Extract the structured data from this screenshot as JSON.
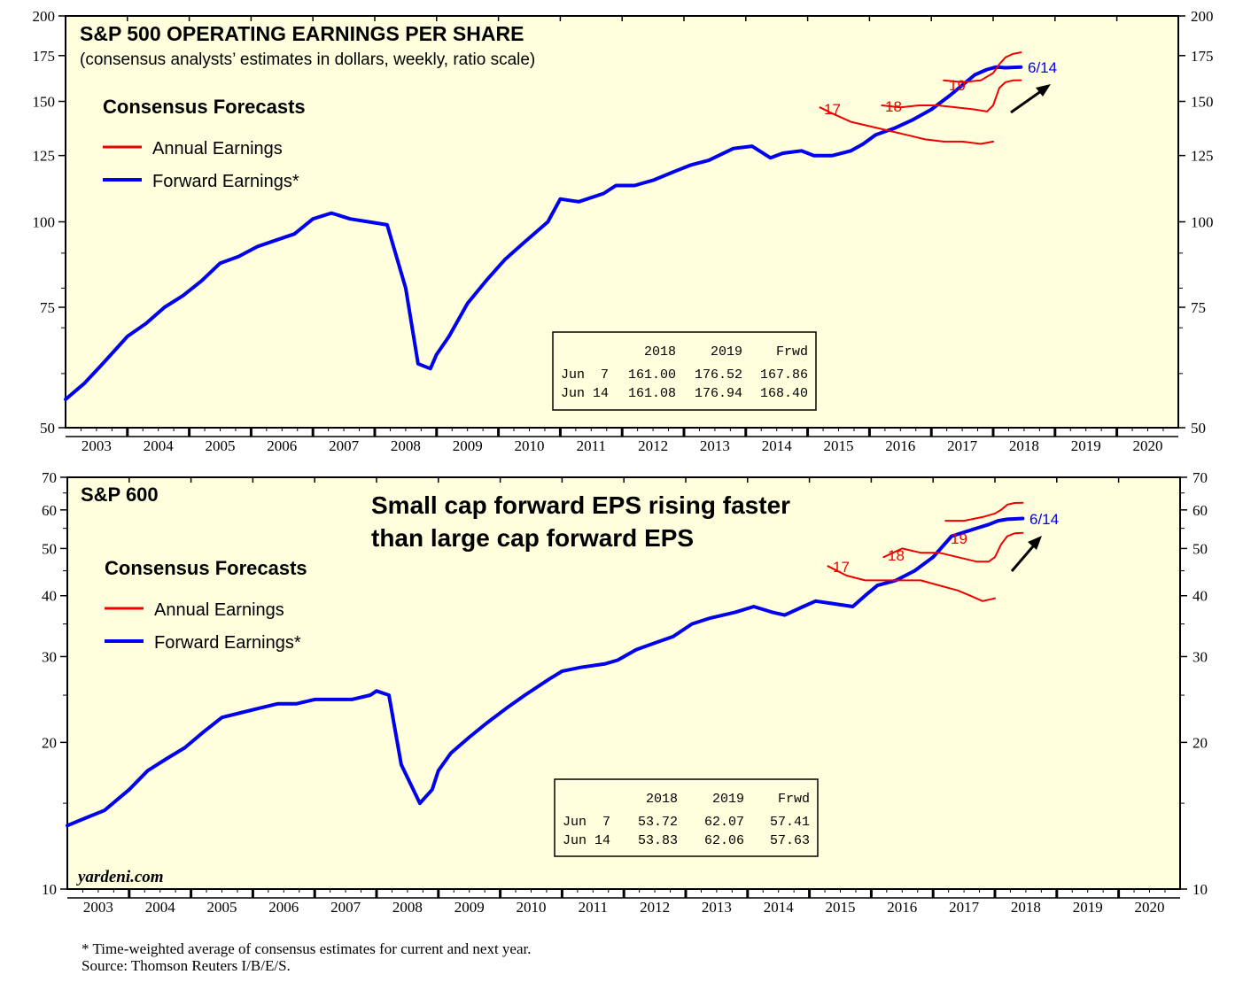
{
  "colors": {
    "background": "#ffffdd",
    "forward": "#0000ee",
    "annual": "#ee0000",
    "axis": "#000000"
  },
  "footnote": {
    "line1": "* Time-weighted average of consensus estimates for current and next year.",
    "line2": "Source: Thomson Reuters I/B/E/S."
  },
  "chart_data": [
    {
      "type": "line",
      "title": "S&P 500 OPERATING EARNINGS PER SHARE",
      "subtitle": "(consensus analysts’ estimates in dollars, weekly, ratio scale)",
      "legend_heading": "Consensus Forecasts",
      "legend": [
        "Annual Earnings",
        "Forward Earnings*"
      ],
      "scale": "log",
      "ylim": [
        50,
        200
      ],
      "xlim": [
        2003,
        2021
      ],
      "y_ticks": [
        50,
        75,
        100,
        125,
        150,
        175,
        200
      ],
      "x_ticks": [
        "2003",
        "2004",
        "2005",
        "2006",
        "2007",
        "2008",
        "2009",
        "2010",
        "2011",
        "2012",
        "2013",
        "2014",
        "2015",
        "2016",
        "2017",
        "2018",
        "2019",
        "2020"
      ],
      "annotations": {
        "label_17": "17",
        "label_18": "18",
        "label_19": "19",
        "last_date": "6/14"
      },
      "table": {
        "headers": [
          "",
          "2018",
          "2019",
          "Frwd"
        ],
        "rows": [
          [
            "Jun  7",
            "161.00",
            "176.52",
            "167.86"
          ],
          [
            "Jun 14",
            "161.08",
            "176.94",
            "168.40"
          ]
        ]
      },
      "series": [
        {
          "name": "Forward Earnings",
          "x": [
            2003.0,
            2003.3,
            2003.6,
            2004.0,
            2004.3,
            2004.6,
            2004.9,
            2005.2,
            2005.5,
            2005.8,
            2006.1,
            2006.4,
            2006.7,
            2007.0,
            2007.3,
            2007.6,
            2007.9,
            2008.2,
            2008.5,
            2008.7,
            2008.9,
            2009.0,
            2009.2,
            2009.5,
            2009.8,
            2010.1,
            2010.4,
            2010.8,
            2011.0,
            2011.3,
            2011.7,
            2011.9,
            2012.2,
            2012.5,
            2012.8,
            2013.1,
            2013.4,
            2013.8,
            2014.1,
            2014.4,
            2014.6,
            2014.9,
            2015.1,
            2015.4,
            2015.7,
            2015.9,
            2016.1,
            2016.4,
            2016.7,
            2017.0,
            2017.3,
            2017.7,
            2017.9,
            2018.05,
            2018.2,
            2018.32,
            2018.45
          ],
          "values": [
            55,
            58,
            62,
            68,
            71,
            75,
            78,
            82,
            87,
            89,
            92,
            94,
            96,
            101,
            103,
            101,
            100,
            99,
            80,
            62,
            61,
            64,
            68,
            76,
            82,
            88,
            93,
            100,
            108,
            107,
            110,
            113,
            113,
            115,
            118,
            121,
            123,
            128,
            129,
            124,
            126,
            127,
            125,
            125,
            127,
            130,
            134,
            137,
            141,
            146,
            153,
            164,
            167,
            168.4,
            168,
            168.2,
            168.4
          ]
        },
        {
          "name": "Annual 2017",
          "x": [
            2015.2,
            2015.4,
            2015.7,
            2016.0,
            2016.3,
            2016.6,
            2016.9,
            2017.2,
            2017.5,
            2017.8,
            2018.0
          ],
          "values": [
            147,
            144,
            140,
            138,
            136,
            134,
            132,
            131,
            131,
            130,
            131
          ]
        },
        {
          "name": "Annual 2018",
          "x": [
            2016.2,
            2016.5,
            2016.8,
            2017.1,
            2017.4,
            2017.7,
            2017.9,
            2018.0,
            2018.1,
            2018.2,
            2018.32,
            2018.45
          ],
          "values": [
            148,
            147,
            148,
            148,
            147,
            146,
            145,
            148,
            157,
            160,
            161,
            161.08
          ]
        },
        {
          "name": "Annual 2019",
          "x": [
            2017.2,
            2017.5,
            2017.8,
            2018.0,
            2018.1,
            2018.2,
            2018.32,
            2018.45
          ],
          "values": [
            161,
            160,
            161,
            165,
            170,
            174,
            176,
            176.94
          ]
        }
      ]
    },
    {
      "type": "line",
      "title": "S&P 600",
      "headline": [
        "Small cap forward EPS rising faster",
        "than large cap forward EPS"
      ],
      "legend_heading": "Consensus Forecasts",
      "legend": [
        "Annual Earnings",
        "Forward Earnings*"
      ],
      "scale": "log",
      "ylim": [
        10,
        70
      ],
      "xlim": [
        2003,
        2021
      ],
      "y_ticks": [
        10,
        20,
        30,
        40,
        50,
        60,
        70
      ],
      "x_ticks": [
        "2003",
        "2004",
        "2005",
        "2006",
        "2007",
        "2008",
        "2009",
        "2010",
        "2011",
        "2012",
        "2013",
        "2014",
        "2015",
        "2016",
        "2017",
        "2018",
        "2019",
        "2020"
      ],
      "annotations": {
        "label_17": "17",
        "label_18": "18",
        "label_19": "19",
        "last_date": "6/14",
        "watermark": "yardeni.com"
      },
      "table": {
        "headers": [
          "",
          "2018",
          "2019",
          "Frwd"
        ],
        "rows": [
          [
            "Jun  7",
            "53.72",
            "62.07",
            "57.41"
          ],
          [
            "Jun 14",
            "53.83",
            "62.06",
            "57.63"
          ]
        ]
      },
      "series": [
        {
          "name": "Forward Earnings",
          "x": [
            2003.0,
            2003.3,
            2003.6,
            2004.0,
            2004.3,
            2004.6,
            2004.9,
            2005.2,
            2005.5,
            2005.8,
            2006.1,
            2006.4,
            2006.7,
            2007.0,
            2007.3,
            2007.6,
            2007.9,
            2008.0,
            2008.2,
            2008.4,
            2008.7,
            2008.9,
            2009.0,
            2009.2,
            2009.5,
            2009.8,
            2010.1,
            2010.4,
            2010.8,
            2011.0,
            2011.3,
            2011.7,
            2011.9,
            2012.2,
            2012.5,
            2012.8,
            2013.1,
            2013.4,
            2013.8,
            2014.1,
            2014.4,
            2014.6,
            2014.9,
            2015.1,
            2015.4,
            2015.7,
            2015.9,
            2016.1,
            2016.4,
            2016.7,
            2017.0,
            2017.3,
            2017.7,
            2017.9,
            2018.05,
            2018.2,
            2018.32,
            2018.45
          ],
          "values": [
            13.5,
            14,
            14.5,
            16,
            17.5,
            18.5,
            19.5,
            21,
            22.5,
            23,
            23.5,
            24,
            24,
            24.5,
            24.5,
            24.5,
            25,
            25.5,
            25,
            18,
            15,
            16,
            17.5,
            19,
            20.5,
            22,
            23.5,
            25,
            27,
            28,
            28.5,
            29,
            29.5,
            31,
            32,
            33,
            35,
            36,
            37,
            38,
            37,
            36.5,
            38,
            39,
            38.5,
            38,
            40,
            42,
            43,
            45,
            48,
            53,
            55,
            56,
            57,
            57.4,
            57.5,
            57.63
          ]
        },
        {
          "name": "Annual 2017",
          "x": [
            2015.3,
            2015.6,
            2015.9,
            2016.2,
            2016.5,
            2016.8,
            2017.1,
            2017.4,
            2017.6,
            2017.8,
            2018.0
          ],
          "values": [
            46,
            44,
            43,
            43,
            43,
            43,
            42,
            41,
            40,
            39,
            39.5
          ]
        },
        {
          "name": "Annual 2018",
          "x": [
            2016.2,
            2016.5,
            2016.8,
            2017.1,
            2017.4,
            2017.7,
            2017.9,
            2018.0,
            2018.1,
            2018.2,
            2018.32,
            2018.45
          ],
          "values": [
            48,
            50,
            49,
            49,
            48,
            47,
            47,
            48,
            51,
            53,
            53.7,
            53.83
          ]
        },
        {
          "name": "Annual 2019",
          "x": [
            2017.2,
            2017.5,
            2017.8,
            2018.0,
            2018.1,
            2018.2,
            2018.32,
            2018.45
          ],
          "values": [
            57,
            57,
            58,
            59,
            60,
            61.5,
            62,
            62.06
          ]
        }
      ]
    }
  ]
}
